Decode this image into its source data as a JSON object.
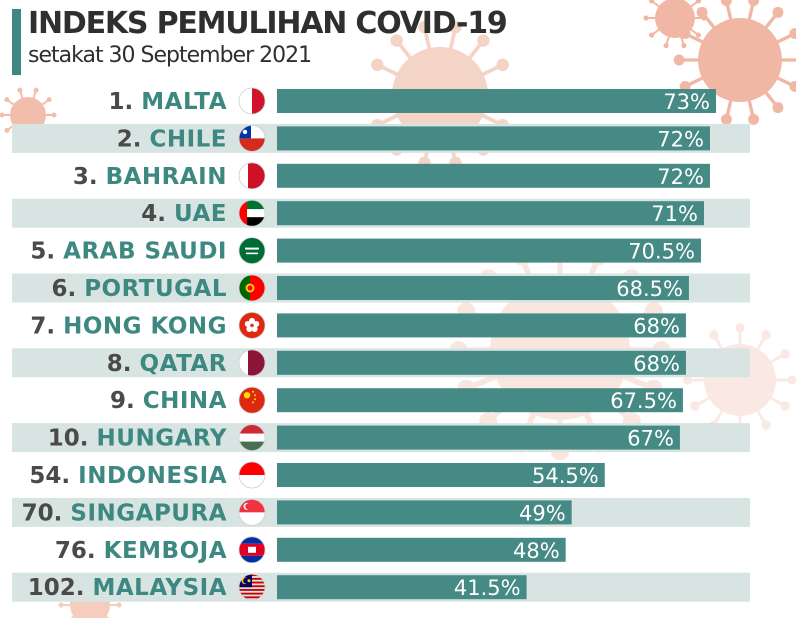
{
  "title": "INDEKS PEMULIHAN COVID-19",
  "subtitle": "setakat 30 September 2021",
  "colors": {
    "bar": "#458a84",
    "stripe": "#d8e4e2",
    "rank": "#4a4a4a",
    "country": "#3d8880",
    "virus": "#f0b8a4"
  },
  "chart_data": {
    "type": "bar",
    "orientation": "horizontal",
    "title": "INDEKS PEMULIHAN COVID-19",
    "subtitle": "setakat 30 September 2021",
    "unit": "%",
    "xlim": [
      0,
      100
    ],
    "grid": false,
    "legend": "none",
    "categories": [
      {
        "rank": "1.",
        "country": "MALTA",
        "flag": "malta-flag"
      },
      {
        "rank": "2.",
        "country": "CHILE",
        "flag": "chile-flag"
      },
      {
        "rank": "3.",
        "country": "BAHRAIN",
        "flag": "bahrain-flag"
      },
      {
        "rank": "4.",
        "country": "UAE",
        "flag": "uae-flag"
      },
      {
        "rank": "5.",
        "country": "ARAB SAUDI",
        "flag": "saudi-arabia-flag"
      },
      {
        "rank": "6.",
        "country": "PORTUGAL",
        "flag": "portugal-flag"
      },
      {
        "rank": "7.",
        "country": "HONG KONG",
        "flag": "hong-kong-flag"
      },
      {
        "rank": "8.",
        "country": "QATAR",
        "flag": "qatar-flag"
      },
      {
        "rank": "9.",
        "country": "CHINA",
        "flag": "china-flag"
      },
      {
        "rank": "10.",
        "country": "HUNGARY",
        "flag": "hungary-flag"
      },
      {
        "rank": "54.",
        "country": "INDONESIA",
        "flag": "indonesia-flag"
      },
      {
        "rank": "70.",
        "country": "SINGAPURA",
        "flag": "singapore-flag"
      },
      {
        "rank": "76.",
        "country": "KEMBOJA",
        "flag": "cambodia-flag"
      },
      {
        "rank": "102.",
        "country": "MALAYSIA",
        "flag": "malaysia-flag"
      }
    ],
    "values": [
      73,
      72,
      72,
      71,
      70.5,
      68.5,
      68,
      68,
      67.5,
      67,
      54.5,
      49,
      48,
      41.5
    ],
    "value_labels": [
      "73%",
      "72%",
      "72%",
      "71%",
      "70.5%",
      "68.5%",
      "68%",
      "68%",
      "67.5%",
      "67%",
      "54.5%",
      "49%",
      "48%",
      "41.5%"
    ]
  }
}
